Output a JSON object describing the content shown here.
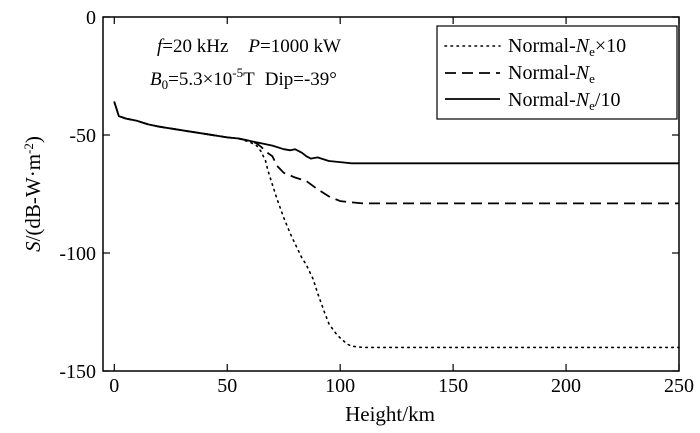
{
  "chart_data": {
    "type": "line",
    "title": "",
    "xlabel": "Height/km",
    "ylabel": "S/(dB-W·m-2)",
    "xlim": [
      -5,
      250
    ],
    "ylim": [
      -150,
      0
    ],
    "xticks": [
      0,
      50,
      100,
      150,
      200,
      250
    ],
    "yticks": [
      0,
      -50,
      -100,
      -150
    ],
    "grid": false,
    "legend_position": "top-right",
    "annotations": {
      "line1": {
        "f_sym": "f",
        "f_val": "=20 kHz",
        "p_sym": "P",
        "p_val": "=1000 kW"
      },
      "line2": {
        "b_sym": "B",
        "b_sub": "0",
        "b_val": "=5.3×10",
        "b_exp": "-5",
        "b_unit": "T",
        "dip": "Dip=-39°"
      }
    },
    "series": [
      {
        "name": "Normal-Ne×10",
        "label_prefix": "Normal-",
        "label_sym": "N",
        "label_sub": "e",
        "label_suffix": "×10",
        "style": "dotted",
        "x": [
          0,
          1,
          2,
          5,
          10,
          15,
          20,
          30,
          40,
          50,
          55,
          60,
          63,
          65,
          67,
          68,
          70,
          72,
          75,
          78,
          80,
          83,
          85,
          88,
          90,
          93,
          95,
          98,
          100,
          103,
          105,
          110,
          115,
          120,
          150,
          200,
          250
        ],
        "y": [
          -36,
          -39,
          -42,
          -43,
          -44,
          -45.5,
          -46.5,
          -48,
          -49.5,
          -51,
          -51.5,
          -53,
          -54.5,
          -57,
          -61,
          -65,
          -71,
          -77,
          -85,
          -92,
          -96,
          -102,
          -105,
          -111,
          -117,
          -125,
          -130,
          -134,
          -136,
          -138.5,
          -139.5,
          -140,
          -140,
          -140,
          -140,
          -140,
          -140
        ]
      },
      {
        "name": "Normal-Ne",
        "label_prefix": "Normal-",
        "label_sym": "N",
        "label_sub": "e",
        "label_suffix": "",
        "style": "dashed",
        "x": [
          0,
          1,
          2,
          5,
          10,
          15,
          20,
          30,
          40,
          50,
          55,
          60,
          63,
          65,
          67,
          70,
          72,
          75,
          80,
          85,
          90,
          95,
          100,
          105,
          110,
          120,
          150,
          200,
          250
        ],
        "y": [
          -36,
          -39,
          -42,
          -43,
          -44,
          -45.5,
          -46.5,
          -48,
          -49.5,
          -51,
          -51.5,
          -52.5,
          -53.5,
          -55,
          -57,
          -59,
          -63,
          -66,
          -68,
          -69.5,
          -73,
          -76,
          -78,
          -78.5,
          -79,
          -79,
          -79,
          -79,
          -79
        ]
      },
      {
        "name": "Normal-Ne/10",
        "label_prefix": "Normal-",
        "label_sym": "N",
        "label_sub": "e",
        "label_suffix": "/10",
        "style": "solid",
        "x": [
          0,
          1,
          2,
          5,
          10,
          15,
          20,
          30,
          40,
          50,
          55,
          60,
          65,
          70,
          75,
          78,
          80,
          83,
          85,
          87,
          90,
          95,
          100,
          105,
          110,
          150,
          200,
          250
        ],
        "y": [
          -36,
          -39,
          -42,
          -43,
          -44,
          -45.5,
          -46.5,
          -48,
          -49.5,
          -51,
          -51.5,
          -52.5,
          -53.5,
          -54.5,
          -56,
          -56.5,
          -56,
          -57.5,
          -59,
          -60,
          -59.5,
          -61,
          -61.5,
          -62,
          -62,
          -62,
          -62,
          -62
        ]
      }
    ]
  }
}
